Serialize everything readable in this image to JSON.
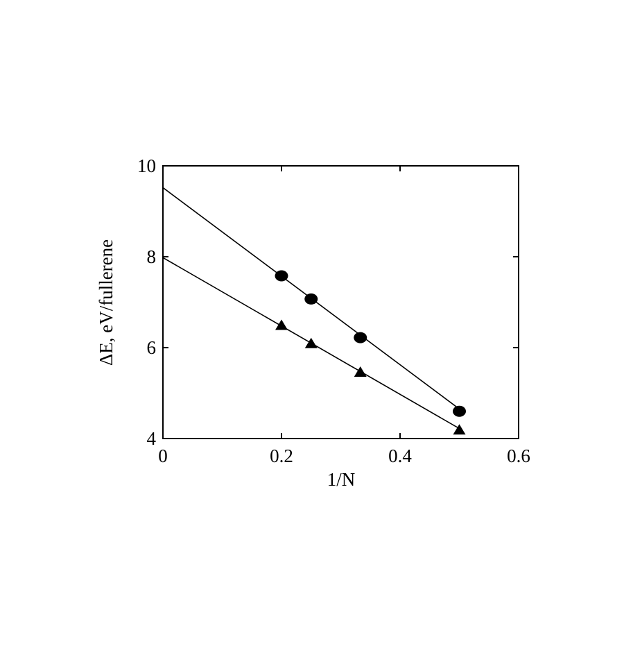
{
  "chart_data": {
    "type": "scatter",
    "x_label": "1/N",
    "y_label": "ΔE, eV/fullerene",
    "x": [
      0.2,
      0.25,
      0.333,
      0.5
    ],
    "series": [
      {
        "marker": "circle",
        "color": "#000000",
        "values": [
          7.58,
          7.07,
          6.22,
          4.6
        ],
        "fit": {
          "x": [
            0,
            0.5
          ],
          "values": [
            9.52,
            4.65
          ]
        }
      },
      {
        "marker": "triangle",
        "color": "#000000",
        "values": [
          6.48,
          6.08,
          5.45,
          4.18
        ],
        "fit": {
          "x": [
            0,
            0.5
          ],
          "values": [
            7.98,
            4.22
          ]
        }
      }
    ],
    "xlim": [
      0,
      0.6
    ],
    "ylim": [
      4,
      10
    ],
    "xticks": [
      0,
      0.2,
      0.4,
      0.6
    ],
    "yticks": [
      4,
      6,
      8,
      10
    ]
  }
}
